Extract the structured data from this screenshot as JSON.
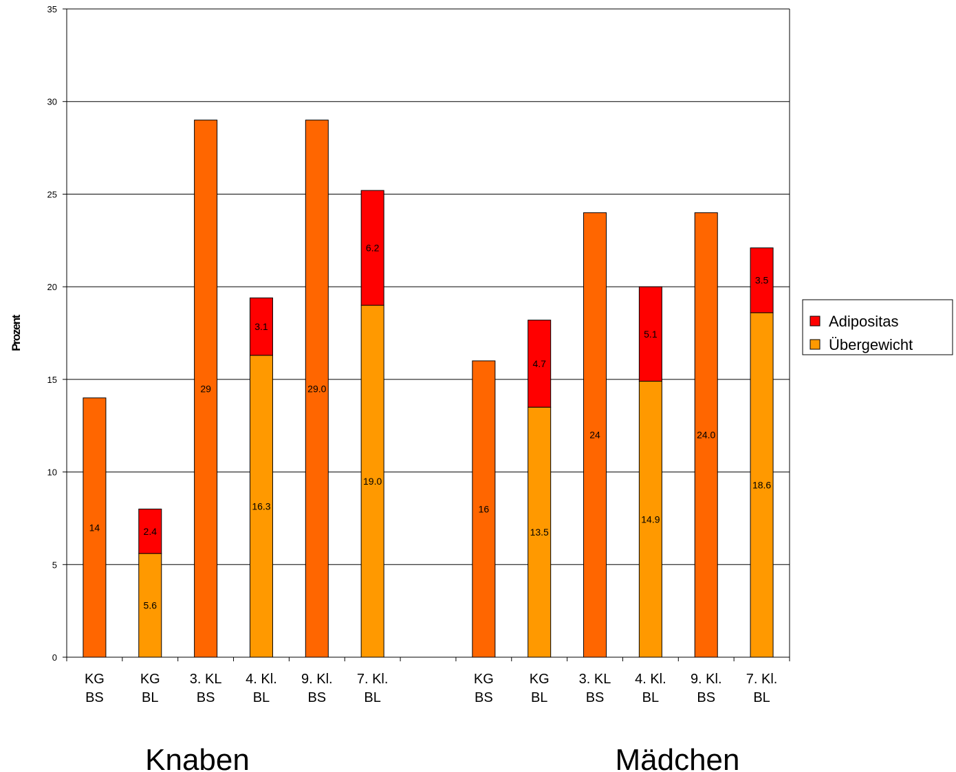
{
  "chart_data": {
    "type": "bar",
    "stacked": true,
    "ylabel": "Prozent",
    "ylim": [
      0,
      35
    ],
    "yticks": [
      0,
      5,
      10,
      15,
      20,
      25,
      30,
      35
    ],
    "grid": true,
    "legend_position": "right",
    "groups": [
      "Knaben",
      "Mädchen"
    ],
    "categories": [
      [
        "KG",
        "BS"
      ],
      [
        "KG",
        "BL"
      ],
      [
        "3. KL",
        "BS"
      ],
      [
        "4. Kl.",
        "BL"
      ],
      [
        "9. Kl.",
        "BS"
      ],
      [
        "7. Kl.",
        "BL"
      ],
      [
        "",
        ""
      ],
      [
        "KG",
        "BS"
      ],
      [
        "KG",
        "BL"
      ],
      [
        "3. KL",
        "BS"
      ],
      [
        "4. Kl.",
        "BL"
      ],
      [
        "9. Kl.",
        "BS"
      ],
      [
        "7. Kl.",
        "BL"
      ]
    ],
    "combined": {
      "color": "#FF6600",
      "values": [
        14,
        null,
        29,
        null,
        29.0,
        null,
        null,
        16,
        null,
        24,
        null,
        24.0,
        null
      ],
      "labels": [
        "14",
        "",
        "29",
        "",
        "29.0",
        "",
        "",
        "16",
        "",
        "24",
        "",
        "24.0",
        ""
      ]
    },
    "series": [
      {
        "name": "Übergewicht",
        "color": "#FF9900",
        "values": [
          null,
          5.6,
          null,
          16.3,
          null,
          19.0,
          null,
          null,
          13.5,
          null,
          14.9,
          null,
          18.6
        ],
        "labels": [
          "",
          "5.6",
          "",
          "16.3",
          "",
          "19.0",
          "",
          "",
          "13.5",
          "",
          "14.9",
          "",
          "18.6"
        ]
      },
      {
        "name": "Adipositas",
        "color": "#FF0000",
        "values": [
          null,
          2.4,
          null,
          3.1,
          null,
          6.2,
          null,
          null,
          4.7,
          null,
          5.1,
          null,
          3.5
        ],
        "labels": [
          "",
          "2.4",
          "",
          "3.1",
          "",
          "6.2",
          "",
          "",
          "4.7",
          "",
          "5.1",
          "",
          "3.5"
        ]
      }
    ],
    "legend": [
      {
        "name": "Adipositas",
        "color": "#FF0000"
      },
      {
        "name": "Übergewicht",
        "color": "#FF9900"
      }
    ]
  }
}
